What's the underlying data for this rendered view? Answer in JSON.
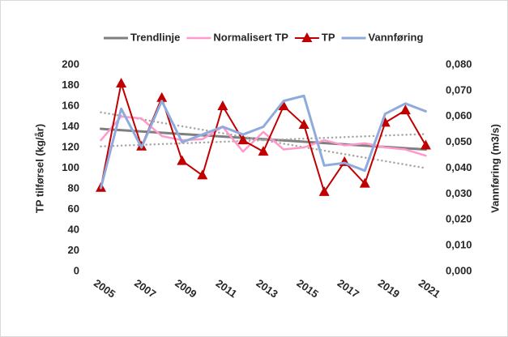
{
  "chart_data": {
    "type": "line",
    "y_label": "TP tilførsel (kg/år)",
    "y2_label": "Vannføring (m3/s)",
    "xlim": [
      2004.5,
      2021.5
    ],
    "xticks": [
      2005,
      2007,
      2009,
      2011,
      2013,
      2015,
      2017,
      2019,
      2021
    ],
    "ylim": [
      0,
      200
    ],
    "yticks": [
      0,
      20,
      40,
      60,
      80,
      100,
      120,
      140,
      160,
      180,
      200
    ],
    "y2lim": [
      0,
      0.08
    ],
    "y2ticks": [
      {
        "value": 0,
        "label": "0,000"
      },
      {
        "value": 0.01,
        "label": "0,010"
      },
      {
        "value": 0.02,
        "label": "0,020"
      },
      {
        "value": 0.03,
        "label": "0,030"
      },
      {
        "value": 0.04,
        "label": "0,040"
      },
      {
        "value": 0.05,
        "label": "0,050"
      },
      {
        "value": 0.06,
        "label": "0,060"
      },
      {
        "value": 0.07,
        "label": "0,070"
      },
      {
        "value": 0.08,
        "label": "0,080"
      }
    ],
    "grid": false,
    "legend": "top",
    "series": [
      {
        "name": "Trendlinje",
        "color": "#7f7f7f",
        "width": 3,
        "x": [
          2005,
          2021
        ],
        "values": [
          138,
          118
        ]
      },
      {
        "color": "#a6a6a6",
        "style": "dotted",
        "width": 2.5,
        "x": [
          2005,
          2021
        ],
        "values": [
          154,
          100
        ]
      },
      {
        "color": "#a6a6a6",
        "style": "dotted",
        "width": 2.5,
        "x": [
          2005,
          2021
        ],
        "values": [
          121,
          133
        ]
      },
      {
        "name": "Normalisert TP",
        "color": "#ff99cc",
        "width": 2.5,
        "x": [
          2005,
          2006,
          2007,
          2008,
          2009,
          2010,
          2011,
          2012,
          2013,
          2014,
          2015,
          2016,
          2017,
          2018,
          2019,
          2020,
          2021
        ],
        "values": [
          127,
          150,
          148,
          131,
          127,
          128,
          140,
          116,
          135,
          118,
          120,
          127,
          122,
          124,
          120,
          118,
          112
        ]
      },
      {
        "name": "TP",
        "color": "#c00000",
        "width": 2,
        "marker": "triangle",
        "x": [
          2005,
          2006,
          2007,
          2008,
          2009,
          2010,
          2011,
          2012,
          2013,
          2014,
          2015,
          2016,
          2017,
          2018,
          2019,
          2020,
          2021
        ],
        "values": [
          81,
          182,
          121,
          168,
          107,
          93,
          160,
          127,
          116,
          160,
          142,
          77,
          106,
          85,
          144,
          156,
          122
        ]
      },
      {
        "name": "Vannføring",
        "color": "#8faadc",
        "width": 3,
        "axis": "y2",
        "x": [
          2005,
          2006,
          2007,
          2008,
          2009,
          2010,
          2011,
          2012,
          2013,
          2014,
          2015,
          2016,
          2017,
          2018,
          2019,
          2020,
          2021
        ],
        "values": [
          0.0323,
          0.063,
          0.048,
          0.066,
          0.05,
          0.053,
          0.056,
          0.053,
          0.056,
          0.066,
          0.068,
          0.041,
          0.042,
          0.039,
          0.061,
          0.065,
          0.062
        ]
      }
    ]
  }
}
